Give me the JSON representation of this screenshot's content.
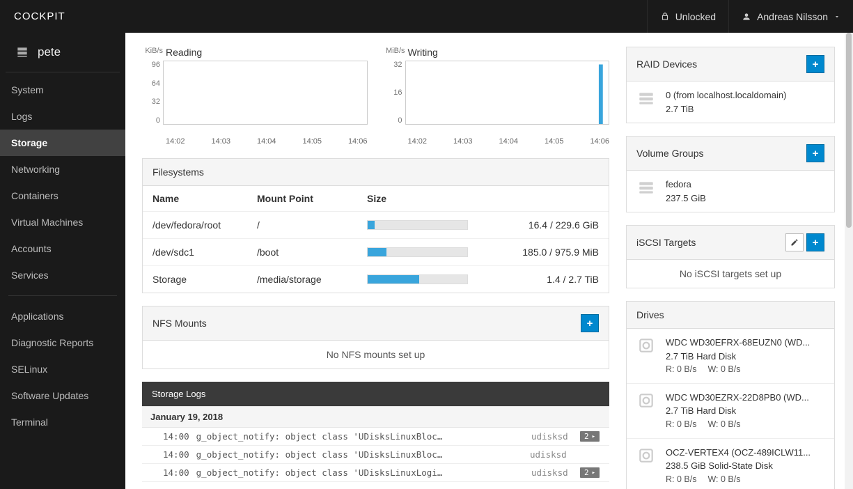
{
  "brand": "COCKPIT",
  "topbar": {
    "lock_label": "Unlocked",
    "user_name": "Andreas Nilsson"
  },
  "host": "pete",
  "nav": {
    "group1": [
      "System",
      "Logs",
      "Storage",
      "Networking",
      "Containers",
      "Virtual Machines",
      "Accounts",
      "Services"
    ],
    "group2": [
      "Applications",
      "Diagnostic Reports",
      "SELinux",
      "Software Updates",
      "Terminal"
    ],
    "active": "Storage"
  },
  "charts": {
    "reading": {
      "title": "Reading",
      "unit": "KiB/s",
      "y_labels": [
        "96",
        "64",
        "32",
        "0"
      ],
      "x_labels": [
        "14:02",
        "14:03",
        "14:04",
        "14:05",
        "14:06"
      ]
    },
    "writing": {
      "title": "Writing",
      "unit": "MiB/s",
      "y_labels": [
        "32",
        "16",
        "0"
      ],
      "x_labels": [
        "14:02",
        "14:03",
        "14:04",
        "14:05",
        "14:06"
      ],
      "spike_pct": 95
    }
  },
  "filesystems": {
    "title": "Filesystems",
    "columns": {
      "name": "Name",
      "mount": "Mount Point",
      "size": "Size"
    },
    "rows": [
      {
        "name": "/dev/fedora/root",
        "mount": "/",
        "size_text": "16.4 / 229.6 GiB",
        "fill_pct": 7
      },
      {
        "name": "/dev/sdc1",
        "mount": "/boot",
        "size_text": "185.0 / 975.9 MiB",
        "fill_pct": 19
      },
      {
        "name": "Storage",
        "mount": "/media/storage",
        "size_text": "1.4 / 2.7 TiB",
        "fill_pct": 52
      }
    ]
  },
  "nfs": {
    "title": "NFS Mounts",
    "empty": "No NFS mounts set up"
  },
  "logs": {
    "title": "Storage Logs",
    "date": "January 19, 2018",
    "rows": [
      {
        "time": "14:00",
        "msg": "g_object_notify: object class 'UDisksLinuxBloc…",
        "src": "udisksd",
        "count": "2"
      },
      {
        "time": "14:00",
        "msg": "g_object_notify: object class 'UDisksLinuxBloc…",
        "src": "udisksd",
        "count": null
      },
      {
        "time": "14:00",
        "msg": "g_object_notify: object class 'UDisksLinuxLogi…",
        "src": "udisksd",
        "count": "2"
      }
    ]
  },
  "raid": {
    "title": "RAID Devices",
    "item": {
      "name": "0 (from localhost.localdomain)",
      "size": "2.7 TiB"
    }
  },
  "vg": {
    "title": "Volume Groups",
    "item": {
      "name": "fedora",
      "size": "237.5 GiB"
    }
  },
  "iscsi": {
    "title": "iSCSI Targets",
    "empty": "No iSCSI targets set up"
  },
  "drives": {
    "title": "Drives",
    "items": [
      {
        "name": "WDC WD30EFRX-68EUZN0 (WD...",
        "desc": "2.7 TiB Hard Disk",
        "r": "R: 0 B/s",
        "w": "W: 0 B/s"
      },
      {
        "name": "WDC WD30EZRX-22D8PB0 (WD...",
        "desc": "2.7 TiB Hard Disk",
        "r": "R: 0 B/s",
        "w": "W: 0 B/s"
      },
      {
        "name": "OCZ-VERTEX4 (OCZ-489ICLW11...",
        "desc": "238.5 GiB Solid-State Disk",
        "r": "R: 0 B/s",
        "w": "W: 0 B/s"
      }
    ]
  }
}
